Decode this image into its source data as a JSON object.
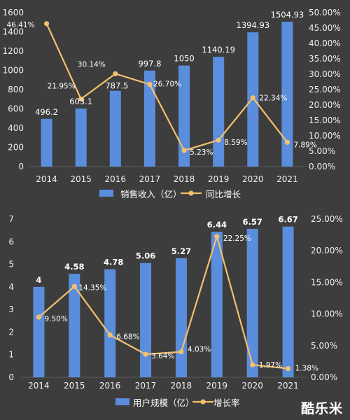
{
  "colors": {
    "background": "#3d3d3d",
    "bar": "#5b8ddd",
    "line": "#f4c06d",
    "text": "#ffffff",
    "axis_text": "#f0f0f0",
    "grid": "#5a5a5a"
  },
  "watermark": "酷乐米",
  "chart_data": [
    {
      "type": "bar",
      "categories": [
        "2014",
        "2015",
        "2016",
        "2017",
        "2018",
        "2019",
        "2020",
        "2021"
      ],
      "series": [
        {
          "name": "销售收入（亿）",
          "type": "bar",
          "axis": "left",
          "values": [
            496.2,
            603.1,
            787.5,
            997.8,
            1050,
            1140.19,
            1394.93,
            1504.93
          ],
          "labels": [
            "496.2",
            "603.1",
            "787.5",
            "997.8",
            "1050",
            "1140.19",
            "1394.93",
            "1504.93"
          ]
        },
        {
          "name": "同比增长",
          "type": "line",
          "axis": "right",
          "values": [
            46.41,
            21.95,
            30.14,
            26.7,
            5.23,
            8.59,
            22.34,
            7.89
          ],
          "labels": [
            "46.41%",
            "21.95%",
            "30.14%",
            "26.70%",
            "5.23%",
            "8.59%",
            "22.34%",
            "7.89%"
          ]
        }
      ],
      "y_left": {
        "min": 0,
        "max": 1600,
        "ticks": [
          "0",
          "200",
          "400",
          "600",
          "800",
          "1000",
          "1200",
          "1400",
          "1600"
        ]
      },
      "y_right": {
        "min": 0,
        "max": 50,
        "ticks": [
          "0.00%",
          "5.00%",
          "10.00%",
          "15.00%",
          "20.00%",
          "25.00%",
          "30.00%",
          "35.00%",
          "40.00%",
          "45.00%",
          "50.00%"
        ]
      },
      "legend_position": "bottom",
      "grid": false
    },
    {
      "type": "bar",
      "categories": [
        "2014",
        "2015",
        "2016",
        "2017",
        "2018",
        "2019",
        "2020",
        "2021"
      ],
      "series": [
        {
          "name": "用户规模（亿）",
          "type": "bar",
          "axis": "left",
          "values": [
            4,
            4.58,
            4.78,
            5.06,
            5.27,
            6.44,
            6.57,
            6.67
          ],
          "labels": [
            "4",
            "4.58",
            "4.78",
            "5.06",
            "5.27",
            "6.44",
            "6.57",
            "6.67"
          ]
        },
        {
          "name": "增长率",
          "type": "line",
          "axis": "right",
          "values": [
            9.5,
            14.35,
            6.68,
            3.64,
            4.03,
            22.25,
            1.97,
            1.38
          ],
          "labels": [
            "9.50%",
            "14.35%",
            "6.68%",
            "3.64%",
            "4.03%",
            "22.25%",
            "1.97%",
            "1.38%"
          ]
        }
      ],
      "y_left": {
        "min": 0,
        "max": 7,
        "ticks": [
          "0",
          "1",
          "2",
          "3",
          "4",
          "5",
          "6",
          "7"
        ]
      },
      "y_right": {
        "min": 0,
        "max": 25,
        "ticks": [
          "0.00%",
          "5.00%",
          "10.00%",
          "15.00%",
          "20.00%",
          "25.00%"
        ]
      },
      "legend_position": "bottom",
      "grid": false
    }
  ]
}
